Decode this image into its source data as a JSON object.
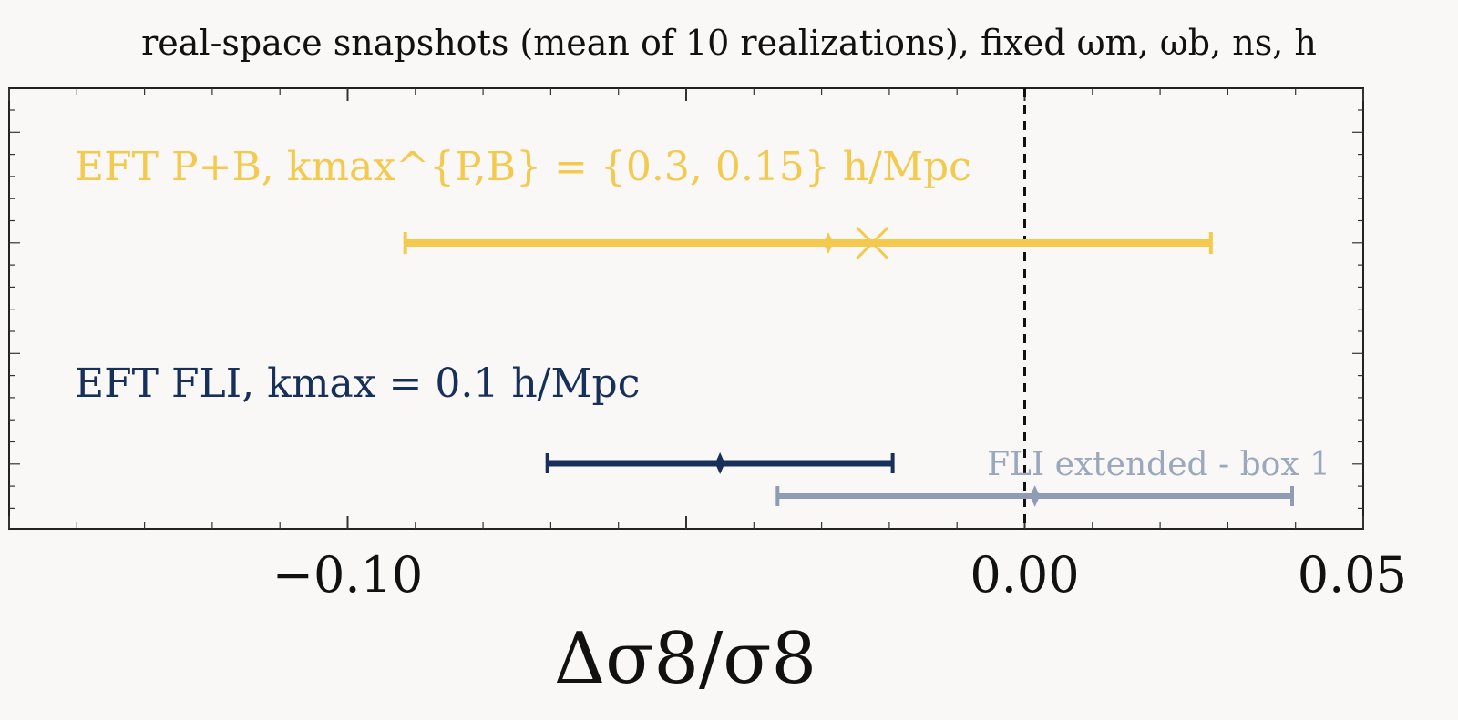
{
  "chart_data": {
    "type": "errorbar",
    "title": "real-space snapshots (mean of 10 realizations), fixed ωm, ωb, ns, h",
    "xlabel": "Δσ8/σ8",
    "ylabel": "",
    "xlim": [
      -0.15,
      0.05
    ],
    "x_ticks": [
      "−0.10",
      "0.00",
      "0.05"
    ],
    "x_tick_values": [
      -0.1,
      0.0,
      0.05
    ],
    "reference_line": {
      "x": 0.0,
      "style": "dashed",
      "color": "#111111"
    },
    "grid": false,
    "series": [
      {
        "name": "EFT P+B, kmax^{P,B} = {0.3, 0.15} h/Mpc",
        "color": "#f3c94e",
        "center": -0.029,
        "lower": -0.0915,
        "upper": 0.0275,
        "cross_marker": -0.0225
      },
      {
        "name": "EFT FLI, kmax = 0.1 h/Mpc",
        "color": "#17305a",
        "center": -0.045,
        "lower": -0.0705,
        "upper": -0.0195
      },
      {
        "name": "FLI extended - box 1",
        "color": "#8e9db4",
        "center": 0.0015,
        "lower": -0.0365,
        "upper": 0.0395
      }
    ]
  }
}
